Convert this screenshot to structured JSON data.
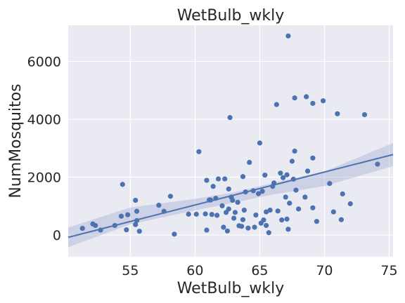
{
  "chart_data": {
    "type": "scatter",
    "title": "WetBulb_wkly",
    "xlabel": "WetBulb_wkly",
    "ylabel": "NumMosquitos",
    "xlim": [
      50.2,
      75.3
    ],
    "ylim": [
      -750,
      7250
    ],
    "xticks": [
      55,
      60,
      65,
      70,
      75
    ],
    "yticks": [
      0,
      2000,
      4000,
      6000
    ],
    "grid": true,
    "colors": {
      "points": "#4c72b0",
      "line": "#4c72b0",
      "band": "#aab4d8",
      "panel": "#eaeaf2",
      "grid": "#ffffff"
    },
    "regression": {
      "x": [
        50.2,
        75.3
      ],
      "y": [
        -80,
        2780
      ]
    },
    "ci_band": {
      "x": [
        50.2,
        55,
        60,
        63,
        66,
        70,
        75.3
      ],
      "lower": [
        -420,
        370,
        850,
        1120,
        1400,
        1690,
        2380
      ],
      "upper": [
        260,
        950,
        1250,
        1470,
        1800,
        2200,
        3180
      ]
    },
    "points": [
      [
        51.3,
        230
      ],
      [
        52.1,
        380
      ],
      [
        52.3,
        330
      ],
      [
        52.7,
        170
      ],
      [
        53.8,
        330
      ],
      [
        54.3,
        650
      ],
      [
        54.4,
        1750
      ],
      [
        54.7,
        180
      ],
      [
        54.8,
        700
      ],
      [
        55.4,
        360
      ],
      [
        55.4,
        1200
      ],
      [
        55.5,
        820
      ],
      [
        55.5,
        500
      ],
      [
        55.7,
        130
      ],
      [
        57.2,
        1030
      ],
      [
        57.6,
        820
      ],
      [
        58.1,
        1340
      ],
      [
        58.4,
        30
      ],
      [
        59.5,
        720
      ],
      [
        60.1,
        720
      ],
      [
        60.3,
        2880
      ],
      [
        60.8,
        730
      ],
      [
        60.9,
        1890
      ],
      [
        60.9,
        170
      ],
      [
        61.1,
        1210
      ],
      [
        61.2,
        1210
      ],
      [
        61.3,
        710
      ],
      [
        61.4,
        1680
      ],
      [
        61.6,
        1270
      ],
      [
        61.7,
        680
      ],
      [
        61.8,
        1940
      ],
      [
        62.1,
        1010
      ],
      [
        62.2,
        270
      ],
      [
        62.3,
        1940
      ],
      [
        62.4,
        780
      ],
      [
        62.5,
        140
      ],
      [
        62.6,
        1590
      ],
      [
        62.6,
        900
      ],
      [
        62.7,
        4060
      ],
      [
        62.8,
        1310
      ],
      [
        62.9,
        1200
      ],
      [
        63.0,
        580
      ],
      [
        63.1,
        780
      ],
      [
        63.3,
        1130
      ],
      [
        63.4,
        320
      ],
      [
        63.6,
        300
      ],
      [
        63.7,
        2020
      ],
      [
        63.7,
        530
      ],
      [
        63.8,
        860
      ],
      [
        63.9,
        1490
      ],
      [
        64.1,
        240
      ],
      [
        64.2,
        2510
      ],
      [
        64.5,
        1530
      ],
      [
        64.6,
        270
      ],
      [
        64.7,
        690
      ],
      [
        64.9,
        1430
      ],
      [
        65.0,
        3180
      ],
      [
        65.1,
        410
      ],
      [
        65.2,
        1510
      ],
      [
        65.3,
        520
      ],
      [
        65.4,
        2070
      ],
      [
        65.5,
        800
      ],
      [
        65.5,
        330
      ],
      [
        65.7,
        80
      ],
      [
        65.8,
        860
      ],
      [
        66.0,
        1680
      ],
      [
        66.1,
        1800
      ],
      [
        66.3,
        4510
      ],
      [
        66.4,
        830
      ],
      [
        66.6,
        2140
      ],
      [
        66.7,
        520
      ],
      [
        66.8,
        1980
      ],
      [
        67.0,
        1310
      ],
      [
        67.1,
        2080
      ],
      [
        67.1,
        550
      ],
      [
        67.2,
        200
      ],
      [
        67.2,
        6880
      ],
      [
        67.3,
        1100
      ],
      [
        67.5,
        2550
      ],
      [
        67.6,
        1930
      ],
      [
        67.7,
        4740
      ],
      [
        67.7,
        2900
      ],
      [
        67.8,
        1550
      ],
      [
        68.0,
        900
      ],
      [
        68.5,
        1310
      ],
      [
        68.6,
        4780
      ],
      [
        68.7,
        2210
      ],
      [
        69.1,
        2660
      ],
      [
        69.1,
        4550
      ],
      [
        69.1,
        940
      ],
      [
        69.4,
        470
      ],
      [
        69.9,
        4640
      ],
      [
        70.4,
        1780
      ],
      [
        70.7,
        800
      ],
      [
        71.0,
        4190
      ],
      [
        71.3,
        530
      ],
      [
        71.4,
        1420
      ],
      [
        72.0,
        1080
      ],
      [
        73.1,
        4160
      ],
      [
        74.1,
        2450
      ]
    ]
  }
}
